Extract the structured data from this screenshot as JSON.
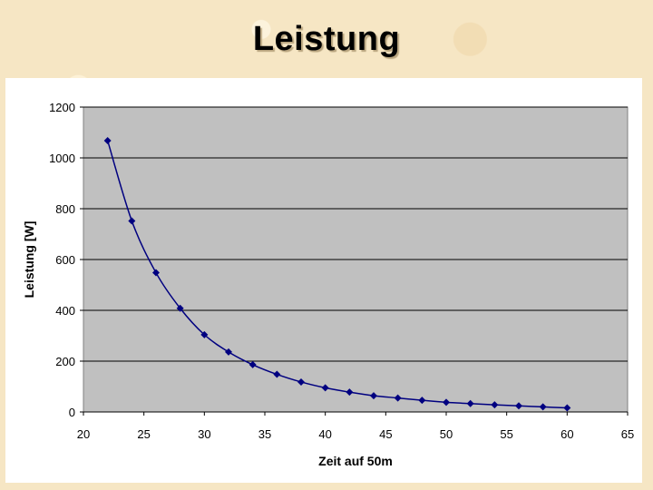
{
  "slide": {
    "title": "Leistung"
  },
  "chart_data": {
    "type": "scatter",
    "title": "",
    "xlabel": "Zeit auf 50m",
    "ylabel": "Leistung [W]",
    "xlim": [
      20,
      65
    ],
    "ylim": [
      0,
      1200
    ],
    "xticks": [
      20,
      25,
      30,
      35,
      40,
      45,
      50,
      55,
      60,
      65
    ],
    "yticks": [
      0,
      200,
      400,
      600,
      800,
      1000,
      1200
    ],
    "grid": "horizontal",
    "legend": "none",
    "smooth_line": true,
    "colors": {
      "plot_bg": "#c0c0c0",
      "series": "#000080",
      "grid": "#000000"
    },
    "series": [
      {
        "x": [
          22,
          24,
          26,
          28,
          30,
          32,
          34,
          36,
          38,
          40,
          42,
          44,
          46,
          48,
          50,
          52,
          54,
          56,
          58,
          60
        ],
        "y": [
          1068,
          752,
          548,
          408,
          304,
          236,
          186,
          148,
          118,
          95,
          78,
          64,
          55,
          46,
          38,
          33,
          28,
          24,
          20,
          16
        ]
      }
    ]
  }
}
